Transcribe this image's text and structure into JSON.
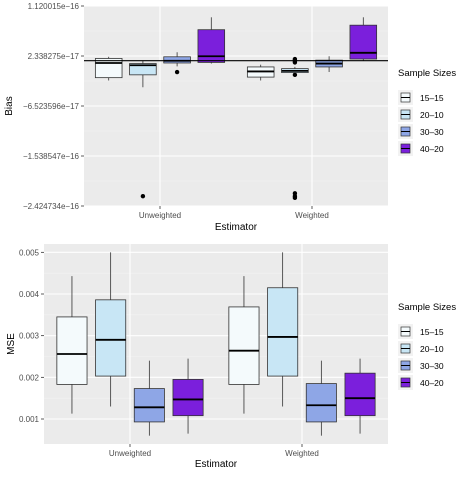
{
  "colors": {
    "panel_bg": "#ebebeb",
    "grid_major": "#ffffff",
    "grid_minor": "#f3f3f3",
    "reference_line": "#000000",
    "box_stroke": "#333333",
    "median": "#000000"
  },
  "legend": {
    "title": "Sample Sizes",
    "entries": [
      {
        "label": "15–15",
        "color": "#f4fafc"
      },
      {
        "label": "20–10",
        "color": "#c8e6f5"
      },
      {
        "label": "30–30",
        "color": "#8ea6e6"
      },
      {
        "label": "40–20",
        "color": "#7b1fdc"
      }
    ]
  },
  "chart_data": [
    {
      "type": "boxplot",
      "title": "",
      "xlabel": "Estimator",
      "ylabel": "Bias",
      "categories": [
        "Unweighted",
        "Weighted"
      ],
      "y_ticks": [
        "1.120015e−16",
        "2.338275e−17",
        "−6.523596e−17",
        "−1.538547e−16",
        "−2.424734e−16"
      ],
      "y_tick_values": [
        1.120015e-16,
        2.338275e-17,
        -6.523596e-17,
        -1.538547e-16,
        -2.424734e-16
      ],
      "ylim": [
        -2.424734e-16,
        1.120015e-16
      ],
      "grid": true,
      "legend_position": "right",
      "reference_line_y": 1.5e-17,
      "series": [
        {
          "name": "15–15",
          "boxes": [
            {
              "category": "Unweighted",
              "min": -2e-17,
              "q1": -1.5e-17,
              "median": 1.1e-17,
              "q3": 1.9e-17,
              "max": 2.2e-17,
              "outliers": []
            },
            {
              "category": "Weighted",
              "min": -2e-17,
              "q1": -1.4e-17,
              "median": -4e-18,
              "q3": 4e-18,
              "max": 8e-18,
              "outliers": []
            }
          ]
        },
        {
          "name": "20–10",
          "boxes": [
            {
              "category": "Unweighted",
              "min": -3.2e-17,
              "q1": -1e-17,
              "median": 7e-18,
              "q3": 1e-17,
              "max": 1.5e-17,
              "outliers": [
                -2.25e-16
              ]
            },
            {
              "category": "Weighted",
              "min": -1e-17,
              "q1": -6e-18,
              "median": -3e-18,
              "q3": 1e-18,
              "max": 4e-18,
              "outliers": [
                1.8e-17,
                1.6e-17,
                1.4e-17,
                1.2e-17,
                -1e-17,
                -2.2e-16,
                -2.25e-16,
                -2.28e-16
              ]
            }
          ]
        },
        {
          "name": "30–30",
          "boxes": [
            {
              "category": "Unweighted",
              "min": 5e-18,
              "q1": 1.1e-17,
              "median": 1.5e-17,
              "q3": 2.2e-17,
              "max": 3e-17,
              "outliers": [
                -5e-18
              ]
            },
            {
              "category": "Weighted",
              "min": -5e-18,
              "q1": 4e-18,
              "median": 1e-17,
              "q3": 1.6e-17,
              "max": 2.3e-17,
              "outliers": []
            }
          ]
        },
        {
          "name": "40–20",
          "boxes": [
            {
              "category": "Unweighted",
              "min": 1e-17,
              "q1": 1.2e-17,
              "median": 2.3e-17,
              "q3": 7e-17,
              "max": 9.2e-17,
              "outliers": []
            },
            {
              "category": "Weighted",
              "min": 1.5e-17,
              "q1": 1.8e-17,
              "median": 2.9e-17,
              "q3": 7.8e-17,
              "max": 9.2e-17,
              "outliers": []
            }
          ]
        }
      ]
    },
    {
      "type": "boxplot",
      "title": "",
      "xlabel": "Estimator",
      "ylabel": "MSE",
      "categories": [
        "Unweighted",
        "Weighted"
      ],
      "y_ticks": [
        "0.001",
        "0.002",
        "0.003",
        "0.004",
        "0.005"
      ],
      "y_tick_values": [
        0.001,
        0.002,
        0.003,
        0.004,
        0.005
      ],
      "ylim": [
        0.0004,
        0.0052
      ],
      "grid": true,
      "legend_position": "right",
      "series": [
        {
          "name": "15–15",
          "boxes": [
            {
              "category": "Unweighted",
              "min": 0.00113,
              "q1": 0.00183,
              "median": 0.00256,
              "q3": 0.00345,
              "max": 0.00443,
              "outliers": []
            },
            {
              "category": "Weighted",
              "min": 0.00113,
              "q1": 0.00183,
              "median": 0.00264,
              "q3": 0.00369,
              "max": 0.00443,
              "outliers": []
            }
          ]
        },
        {
          "name": "20–10",
          "boxes": [
            {
              "category": "Unweighted",
              "min": 0.0013,
              "q1": 0.00203,
              "median": 0.0029,
              "q3": 0.00386,
              "max": 0.005,
              "outliers": []
            },
            {
              "category": "Weighted",
              "min": 0.0013,
              "q1": 0.00203,
              "median": 0.00297,
              "q3": 0.00415,
              "max": 0.005,
              "outliers": []
            }
          ]
        },
        {
          "name": "30–30",
          "boxes": [
            {
              "category": "Unweighted",
              "min": 0.0006,
              "q1": 0.00093,
              "median": 0.00128,
              "q3": 0.00173,
              "max": 0.0024,
              "outliers": []
            },
            {
              "category": "Weighted",
              "min": 0.0006,
              "q1": 0.00093,
              "median": 0.00133,
              "q3": 0.00185,
              "max": 0.0024,
              "outliers": []
            }
          ]
        },
        {
          "name": "40–20",
          "boxes": [
            {
              "category": "Unweighted",
              "min": 0.00065,
              "q1": 0.00108,
              "median": 0.00147,
              "q3": 0.00195,
              "max": 0.00245,
              "outliers": []
            },
            {
              "category": "Weighted",
              "min": 0.00065,
              "q1": 0.00108,
              "median": 0.0015,
              "q3": 0.0021,
              "max": 0.00245,
              "outliers": []
            }
          ]
        }
      ]
    }
  ]
}
